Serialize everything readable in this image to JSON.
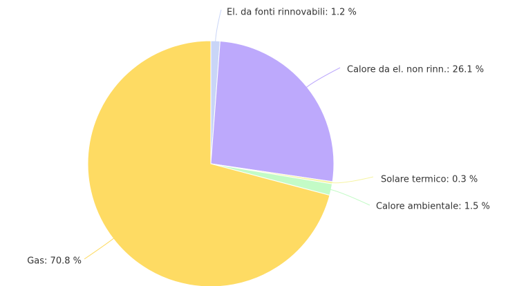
{
  "chart_data": {
    "type": "pie",
    "values": [
      1.2,
      26.1,
      0.3,
      1.5,
      70.8
    ],
    "value_labels": [
      "El. da fonti rinnovabili: 1.2 %",
      "Calore da el. non rinn.: 26.1 %",
      "Solare termico: 0.3 %",
      "Calore ambientale: 1.5 %",
      "Gas: 70.8 %"
    ],
    "colors": [
      "#c9d5f7",
      "#bda9fc",
      "#f6f4a2",
      "#c3fbc6",
      "#fedb63"
    ]
  }
}
